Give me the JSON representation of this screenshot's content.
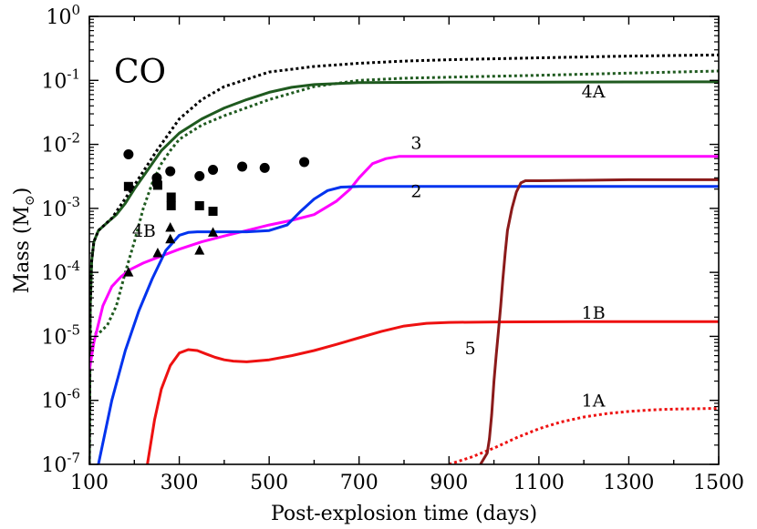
{
  "chart_data": {
    "type": "line",
    "title": "CO",
    "xlabel": "Post-explosion time (days)",
    "ylabel": "Mass (M",
    "ylabel_sub": "⊙",
    "ylabel_close": ")",
    "xlim": [
      100,
      1500
    ],
    "ylim_log10": [
      -7,
      0
    ],
    "yscale": "log",
    "x_ticks": [
      100,
      300,
      500,
      700,
      900,
      1100,
      1300,
      1500
    ],
    "x_tick_labels": [
      "100",
      "300",
      "500",
      "700",
      "900",
      "1100",
      "1300",
      "1500"
    ],
    "y_ticks_log10": [
      -7,
      -6,
      -5,
      -4,
      -3,
      -2,
      -1,
      0
    ],
    "y_tick_base": "10",
    "y_tick_exps": [
      "-7",
      "-6",
      "-5",
      "-4",
      "-3",
      "-2",
      "-1",
      "0"
    ],
    "series": [
      {
        "name": "4A",
        "color": "#1f5a1f",
        "style": "solid",
        "x": [
          100,
          102,
          105,
          110,
          120,
          140,
          160,
          180,
          200,
          230,
          260,
          300,
          350,
          400,
          450,
          500,
          550,
          600,
          700,
          800,
          900,
          1100,
          1300,
          1500
        ],
        "y": [
          1e-07,
          3e-05,
          0.00015,
          0.0003,
          0.00045,
          0.0006,
          0.0008,
          0.0012,
          0.002,
          0.004,
          0.008,
          0.015,
          0.025,
          0.037,
          0.05,
          0.065,
          0.078,
          0.086,
          0.092,
          0.093,
          0.0935,
          0.094,
          0.0945,
          0.095
        ]
      },
      {
        "name": "4B",
        "color": "#1f5a1f",
        "style": "dotted",
        "x": [
          100,
          120,
          140,
          160,
          180,
          200,
          220,
          240,
          260,
          280,
          300,
          350,
          400,
          500,
          600,
          700,
          800,
          900,
          1100,
          1300,
          1500
        ],
        "y": [
          1.2e-05,
          1.1e-05,
          1.5e-05,
          3e-05,
          0.0001,
          0.0003,
          0.001,
          0.0025,
          0.005,
          0.008,
          0.012,
          0.02,
          0.028,
          0.05,
          0.08,
          0.1,
          0.108,
          0.112,
          0.12,
          0.13,
          0.14
        ]
      },
      {
        "name": "",
        "color": "#000000",
        "style": "dotted",
        "x": [
          100,
          102,
          105,
          110,
          120,
          150,
          200,
          250,
          300,
          350,
          400,
          500,
          600,
          700,
          800,
          900,
          1100,
          1300,
          1500
        ],
        "y": [
          1e-07,
          3e-05,
          0.00015,
          0.0003,
          0.00045,
          0.0007,
          0.0023,
          0.008,
          0.025,
          0.05,
          0.08,
          0.135,
          0.165,
          0.185,
          0.2,
          0.21,
          0.225,
          0.24,
          0.25
        ]
      },
      {
        "name": "3",
        "color": "#ff00ff",
        "style": "solid",
        "x": [
          100,
          110,
          130,
          150,
          170,
          190,
          220,
          260,
          300,
          350,
          400,
          450,
          500,
          550,
          600,
          650,
          680,
          700,
          730,
          760,
          790,
          850,
          1000,
          1200,
          1500
        ],
        "y": [
          3e-06,
          8e-06,
          3e-05,
          6e-05,
          8.5e-05,
          0.00011,
          0.00014,
          0.00018,
          0.00023,
          0.0003,
          0.00037,
          0.00045,
          0.00055,
          0.00065,
          0.0008,
          0.0013,
          0.002,
          0.003,
          0.005,
          0.006,
          0.0065,
          0.0065,
          0.0065,
          0.0065,
          0.0065
        ]
      },
      {
        "name": "2",
        "color": "#0033ee",
        "style": "solid",
        "x": [
          120,
          150,
          180,
          210,
          240,
          270,
          300,
          320,
          340,
          360,
          400,
          450,
          500,
          540,
          570,
          600,
          630,
          660,
          700,
          800,
          1000,
          1200,
          1500
        ],
        "y": [
          1e-07,
          1e-06,
          6e-06,
          2.5e-05,
          8e-05,
          0.00022,
          0.00038,
          0.00042,
          0.00043,
          0.00043,
          0.00043,
          0.00043,
          0.00045,
          0.00055,
          0.0009,
          0.0014,
          0.0019,
          0.00215,
          0.0022,
          0.0022,
          0.0022,
          0.0022,
          0.0022
        ]
      },
      {
        "name": "1B",
        "color": "#ee1111",
        "style": "solid",
        "x": [
          229,
          245,
          260,
          280,
          300,
          320,
          340,
          360,
          380,
          400,
          420,
          450,
          500,
          550,
          600,
          650,
          700,
          750,
          800,
          850,
          900,
          1000,
          1200,
          1500
        ],
        "y": [
          1e-07,
          5e-07,
          1.5e-06,
          3.5e-06,
          5.5e-06,
          6.2e-06,
          6e-06,
          5.3e-06,
          4.7e-06,
          4.3e-06,
          4.1e-06,
          4e-06,
          4.3e-06,
          5e-06,
          6e-06,
          7.5e-06,
          9.5e-06,
          1.2e-05,
          1.45e-05,
          1.6e-05,
          1.65e-05,
          1.68e-05,
          1.7e-05,
          1.7e-05
        ]
      },
      {
        "name": "1A",
        "color": "#ee1111",
        "style": "dotted",
        "x": [
          900,
          950,
          1000,
          1050,
          1100,
          1150,
          1200,
          1250,
          1300,
          1350,
          1400,
          1450,
          1500
        ],
        "y": [
          1e-07,
          1.3e-07,
          1.8e-07,
          2.6e-07,
          3.6e-07,
          4.6e-07,
          5.5e-07,
          6.2e-07,
          6.7e-07,
          7.1e-07,
          7.3e-07,
          7.4e-07,
          7.5e-07
        ]
      },
      {
        "name": "5",
        "color": "#8b1a1a",
        "style": "solid",
        "x": [
          970,
          985,
          990,
          995,
          1000,
          1005,
          1010,
          1015,
          1020,
          1025,
          1030,
          1040,
          1050,
          1060,
          1070,
          1100,
          1200,
          1300,
          1400,
          1500
        ],
        "y": [
          1e-07,
          1.5e-07,
          2.5e-07,
          6e-07,
          2e-06,
          5e-06,
          1.2e-05,
          3e-05,
          8e-05,
          0.0002,
          0.00045,
          0.001,
          0.0018,
          0.0025,
          0.0027,
          0.0027,
          0.00275,
          0.0028,
          0.0028,
          0.0028
        ]
      }
    ],
    "observations": [
      {
        "marker": "circle",
        "points": [
          [
            187,
            0.007
          ],
          [
            250,
            0.003
          ],
          [
            280,
            0.0038
          ],
          [
            345,
            0.0032
          ],
          [
            375,
            0.004
          ],
          [
            440,
            0.0045
          ],
          [
            490,
            0.0043
          ],
          [
            578,
            0.0053
          ]
        ]
      },
      {
        "marker": "square",
        "points": [
          [
            187,
            0.0022
          ],
          [
            250,
            0.0026
          ],
          [
            252,
            0.0023
          ],
          [
            282,
            0.0015
          ],
          [
            282,
            0.0011
          ],
          [
            345,
            0.0011
          ],
          [
            375,
            0.0009
          ]
        ]
      },
      {
        "marker": "triangle",
        "points": [
          [
            187,
            0.0001
          ],
          [
            252,
            0.0002
          ],
          [
            280,
            0.00033
          ],
          [
            280,
            0.0005
          ],
          [
            345,
            0.00022
          ],
          [
            375,
            0.00042
          ]
        ]
      }
    ],
    "annotations": [
      {
        "text": "4A",
        "x": 1195,
        "y": 0.054
      },
      {
        "text": "3",
        "x": 815,
        "y": 0.0085
      },
      {
        "text": "2",
        "x": 815,
        "y": 0.0015
      },
      {
        "text": "4B",
        "x": 195,
        "y": 0.00036
      },
      {
        "text": "1B",
        "x": 1195,
        "y": 1.9e-05
      },
      {
        "text": "5",
        "x": 935,
        "y": 5.3e-06
      },
      {
        "text": "1A",
        "x": 1195,
        "y": 8e-07
      }
    ],
    "grid": false,
    "legend": "none"
  }
}
